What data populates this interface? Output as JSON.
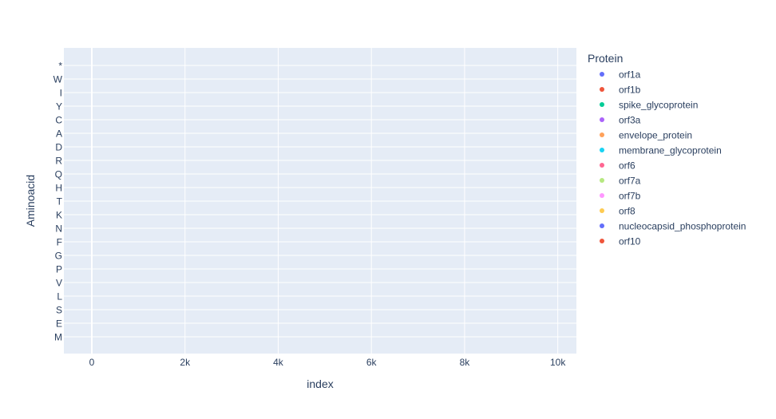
{
  "chart_data": {
    "type": "scatter",
    "xlabel": "index",
    "ylabel": "Aminoacid",
    "xlim": [
      -600,
      10400
    ],
    "x_ticks": [
      0,
      2000,
      4000,
      6000,
      8000,
      10000
    ],
    "x_tick_labels": [
      "0",
      "2k",
      "4k",
      "6k",
      "8k",
      "10k"
    ],
    "y_categories": [
      "M",
      "E",
      "S",
      "L",
      "V",
      "P",
      "G",
      "F",
      "N",
      "K",
      "T",
      "H",
      "Q",
      "R",
      "D",
      "A",
      "C",
      "Y",
      "I",
      "W",
      "*"
    ],
    "grid": true,
    "plot_background": "#e5ecf6",
    "legend": {
      "title": "Protein",
      "placement": "right",
      "entries": [
        {
          "name": "orf1a",
          "color": "#636efa"
        },
        {
          "name": "orf1b",
          "color": "#ef553b"
        },
        {
          "name": "spike_glycoprotein",
          "color": "#00cc96"
        },
        {
          "name": "orf3a",
          "color": "#ab63fa"
        },
        {
          "name": "envelope_protein",
          "color": "#ffa15a"
        },
        {
          "name": "membrane_glycoprotein",
          "color": "#19d3f3"
        },
        {
          "name": "orf6",
          "color": "#ff6692"
        },
        {
          "name": "orf7a",
          "color": "#b6e880"
        },
        {
          "name": "orf7b",
          "color": "#ff97ff"
        },
        {
          "name": "orf8",
          "color": "#fecb52"
        },
        {
          "name": "nucleocapsid_phosphoprotein",
          "color": "#636efa"
        },
        {
          "name": "orf10",
          "color": "#ef553b"
        }
      ]
    },
    "series": []
  }
}
